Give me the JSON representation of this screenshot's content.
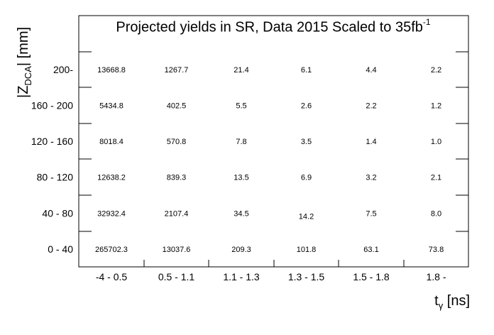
{
  "title_main": "Projected yields in SR, Data 2015 Scaled to 35fb",
  "title_sup": "-1",
  "x_axis": {
    "symbol": "t",
    "sub": "γ",
    "unit": " [ns]"
  },
  "y_axis": {
    "prefix": "|Z",
    "sub": "DCA",
    "suffix": "| [mm]"
  },
  "chart_data": {
    "type": "table",
    "x_categories": [
      "-4 - 0.5",
      "0.5 - 1.1",
      "1.1 - 1.3",
      "1.3 - 1.5",
      "1.5 - 1.8",
      "1.8 -"
    ],
    "y_categories": [
      "0 - 40",
      "40 - 80",
      "80 - 120",
      "120 - 160",
      "160 - 200",
      "200-"
    ],
    "values": [
      [
        "265702.3",
        "13037.6",
        "209.3",
        "101.8",
        "63.1",
        "73.8"
      ],
      [
        "32932.4",
        "2107.4",
        "34.5",
        "14.2",
        "7.5",
        "8.0"
      ],
      [
        "12638.2",
        "839.3",
        "13.5",
        "6.9",
        "3.2",
        "2.1"
      ],
      [
        "8018.4",
        "570.8",
        "7.8",
        "3.5",
        "1.4",
        "1.0"
      ],
      [
        "5434.8",
        "402.5",
        "5.5",
        "2.6",
        "2.2",
        "1.2"
      ],
      [
        "13668.8",
        "1267.7",
        "21.4",
        "6.1",
        "4.4",
        "2.2"
      ]
    ],
    "grid": false
  }
}
